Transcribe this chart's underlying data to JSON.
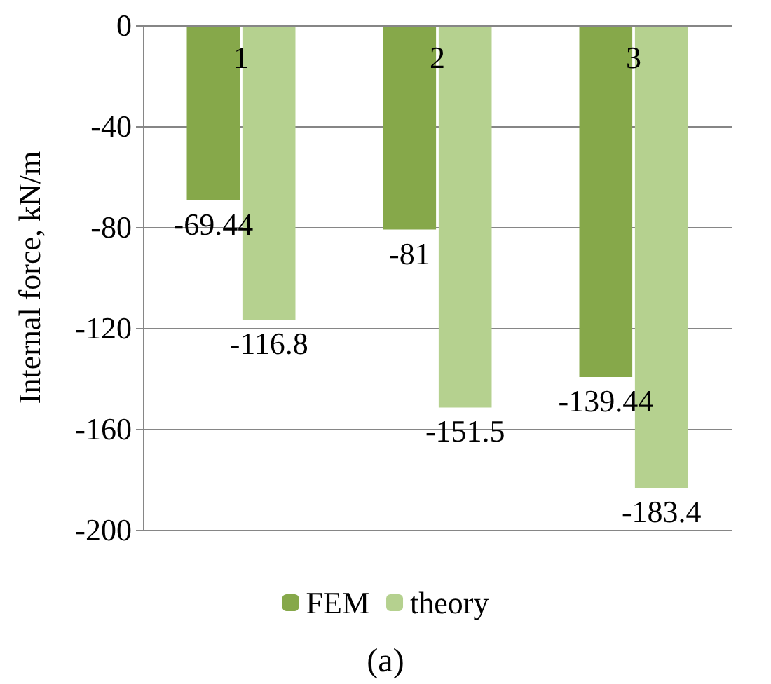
{
  "chart_data": {
    "type": "bar",
    "ylabel": "Internal force, kN/m",
    "categories": [
      "1",
      "2",
      "3"
    ],
    "series": [
      {
        "name": "FEM",
        "color": "#86a84a",
        "values": [
          -69.44,
          -81,
          -139.44
        ]
      },
      {
        "name": "theory",
        "color": "#b5d18f",
        "values": [
          -116.8,
          -151.5,
          -183.4
        ]
      }
    ],
    "ylim": [
      -200,
      0
    ],
    "yticks": [
      -200,
      -160,
      -120,
      -80,
      -40,
      0
    ],
    "grid": "y",
    "legend": "bottom",
    "data_labels": true,
    "annotations": [
      "(a)"
    ]
  }
}
